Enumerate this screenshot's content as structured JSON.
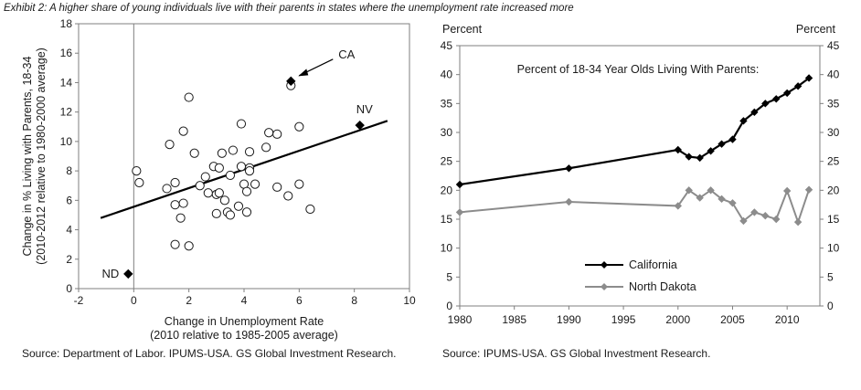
{
  "exhibit_title": "Exhibit 2: A higher share of young individuals live with their parents in states where the unemployment rate increased more",
  "chart_data": [
    {
      "type": "scatter",
      "xlabel": "Change in Unemployment Rate",
      "xlabel2": "(2010 relative to 1985-2005 average)",
      "ylabel": "Change in % Living with Parents, 18-34",
      "ylabel2": "(2010-2012 relative to 1980-2000 average)",
      "xlim": [
        -2,
        10
      ],
      "ylim": [
        0,
        18
      ],
      "xticks": [
        -2,
        0,
        2,
        4,
        6,
        8,
        10
      ],
      "yticks": [
        0,
        2,
        4,
        6,
        8,
        10,
        12,
        14,
        16,
        18
      ],
      "xtick_labels": [
        "-2",
        "0",
        "2",
        "4",
        "6",
        "8",
        "10"
      ],
      "ytick_labels": [
        "0",
        "2",
        "4",
        "6",
        "8",
        "10",
        "12",
        "14",
        "16",
        "18"
      ],
      "fit_line": {
        "x": [
          -1.2,
          9.2
        ],
        "y": [
          4.8,
          11.4
        ]
      },
      "highlighted": [
        {
          "label": "CA",
          "x": 5.7,
          "y": 14.1
        },
        {
          "label": "NV",
          "x": 8.2,
          "y": 11.1
        },
        {
          "label": "ND",
          "x": -0.2,
          "y": 1.0
        }
      ],
      "points": [
        [
          0.1,
          8.0
        ],
        [
          0.2,
          7.2
        ],
        [
          1.2,
          6.8
        ],
        [
          1.3,
          9.8
        ],
        [
          1.5,
          7.2
        ],
        [
          1.5,
          5.7
        ],
        [
          1.5,
          3.0
        ],
        [
          1.7,
          4.8
        ],
        [
          1.8,
          10.7
        ],
        [
          1.8,
          5.8
        ],
        [
          2.0,
          13.0
        ],
        [
          2.0,
          2.9
        ],
        [
          2.2,
          9.2
        ],
        [
          2.4,
          7.0
        ],
        [
          2.6,
          7.6
        ],
        [
          2.7,
          6.5
        ],
        [
          2.9,
          8.3
        ],
        [
          3.0,
          6.4
        ],
        [
          3.0,
          5.1
        ],
        [
          3.1,
          6.5
        ],
        [
          3.1,
          8.2
        ],
        [
          3.2,
          9.2
        ],
        [
          3.3,
          6.0
        ],
        [
          3.4,
          5.2
        ],
        [
          3.5,
          7.7
        ],
        [
          3.5,
          5.0
        ],
        [
          3.6,
          9.4
        ],
        [
          3.8,
          5.6
        ],
        [
          3.9,
          11.2
        ],
        [
          3.9,
          8.3
        ],
        [
          4.0,
          7.1
        ],
        [
          4.1,
          5.2
        ],
        [
          4.1,
          6.6
        ],
        [
          4.2,
          9.3
        ],
        [
          4.2,
          8.2
        ],
        [
          4.2,
          8.0
        ],
        [
          4.4,
          7.1
        ],
        [
          4.8,
          9.6
        ],
        [
          4.9,
          10.6
        ],
        [
          5.2,
          10.5
        ],
        [
          5.2,
          6.9
        ],
        [
          5.6,
          6.3
        ],
        [
          5.7,
          13.8
        ],
        [
          6.0,
          11.0
        ],
        [
          6.0,
          7.1
        ],
        [
          6.4,
          5.4
        ]
      ]
    },
    {
      "type": "line",
      "title": "Percent of 18-34 Year Olds Living With Parents:",
      "ylabel_left": "Percent",
      "ylabel_right": "Percent",
      "xlim": [
        1980,
        2013
      ],
      "ylim": [
        0,
        45
      ],
      "xticks": [
        1980,
        1985,
        1990,
        1995,
        2000,
        2005,
        2010
      ],
      "yticks": [
        0,
        5,
        10,
        15,
        20,
        25,
        30,
        35,
        40,
        45
      ],
      "xtick_labels": [
        "1980",
        "1985",
        "1990",
        "1995",
        "2000",
        "2005",
        "2010"
      ],
      "ytick_labels": [
        "0",
        "5",
        "10",
        "15",
        "20",
        "25",
        "30",
        "35",
        "40",
        "45"
      ],
      "series": [
        {
          "name": "California",
          "color": "#000000",
          "x": [
            1980,
            1990,
            2000,
            2001,
            2002,
            2003,
            2004,
            2005,
            2006,
            2007,
            2008,
            2009,
            2010,
            2011,
            2012
          ],
          "values": [
            21.0,
            23.8,
            27.0,
            25.8,
            25.6,
            26.8,
            28.0,
            28.8,
            32.0,
            33.5,
            35.0,
            35.8,
            36.8,
            38.0,
            39.4
          ]
        },
        {
          "name": "North Dakota",
          "color": "#8c8c8c",
          "x": [
            1980,
            1990,
            2000,
            2001,
            2002,
            2003,
            2004,
            2005,
            2006,
            2007,
            2008,
            2009,
            2010,
            2011,
            2012
          ],
          "values": [
            16.2,
            18.0,
            17.3,
            20.0,
            18.7,
            20.0,
            18.5,
            17.8,
            14.7,
            16.2,
            15.6,
            15.0,
            19.9,
            14.5,
            20.1
          ]
        }
      ]
    }
  ],
  "sources": {
    "left": "Source: Department of Labor. IPUMS-USA. GS Global Investment Research.",
    "right": "Source: IPUMS-USA. GS Global Investment Research."
  }
}
